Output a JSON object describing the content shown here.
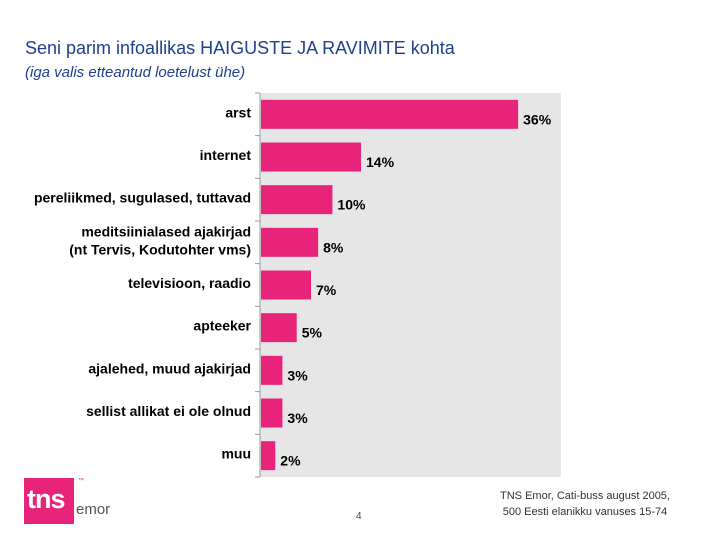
{
  "header": {
    "title": "Seni parim infoallikas HAIGUSTE JA RAVIMITE kohta",
    "subtitle": "(iga valis etteantud loetelust ühe)"
  },
  "chart_data": {
    "type": "bar",
    "orientation": "horizontal",
    "categories": [
      "arst",
      "internet",
      "pereliikmed, sugulased, tuttavad",
      "meditsiinialased ajakirjad (nt Tervis, Kodutohter vms)",
      "televisioon, raadio",
      "apteeker",
      "ajalehed, muud ajakirjad",
      "sellist allikat ei ole olnud",
      "muu"
    ],
    "category_lines": [
      [
        "arst"
      ],
      [
        "internet"
      ],
      [
        "pereliikmed, sugulased, tuttavad"
      ],
      [
        "meditsiinialased ajakirjad",
        "(nt Tervis, Kodutohter vms)"
      ],
      [
        "televisioon, raadio"
      ],
      [
        "apteeker"
      ],
      [
        "ajalehed, muud ajakirjad"
      ],
      [
        "sellist allikat ei ole olnud"
      ],
      [
        "muu"
      ]
    ],
    "values": [
      36,
      14,
      10,
      8,
      7,
      5,
      3,
      3,
      2
    ],
    "value_labels": [
      "36%",
      "14%",
      "10%",
      "8%",
      "7%",
      "5%",
      "3%",
      "3%",
      "2%"
    ],
    "xlim": [
      0,
      42
    ],
    "bar_color": "#e8247a",
    "plot_background": "#e6e6e6",
    "legend": "none",
    "grid": false
  },
  "footer": {
    "page_number": "4",
    "source_line1": "TNS Emor, Cati-buss august 2005,",
    "source_line2": "500 Eesti elanikku vanuses 15-74"
  },
  "logo": {
    "mark": "tns",
    "tm": "™",
    "name": "emor",
    "color": "#e8247a"
  }
}
